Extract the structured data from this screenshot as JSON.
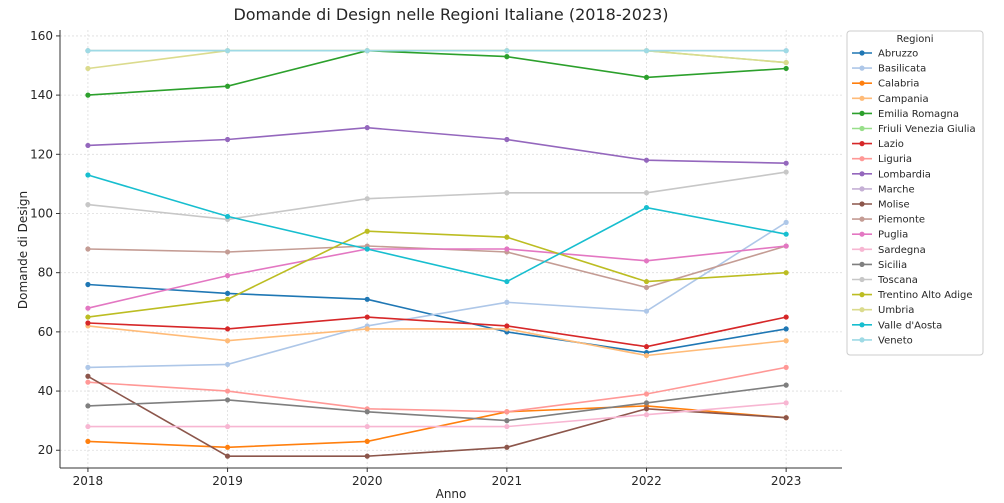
{
  "chart_data": {
    "type": "line",
    "title": "Domande di Design nelle Regioni Italiane (2018-2023)",
    "xlabel": "Anno",
    "ylabel": "Domande di Design",
    "x": [
      2018,
      2019,
      2020,
      2021,
      2022,
      2023
    ],
    "x_tick_labels": [
      "2018",
      "2019",
      "2020",
      "2021",
      "2022",
      "2023"
    ],
    "xlim": [
      2017.8,
      2023.4
    ],
    "ylim": [
      14,
      162
    ],
    "y_ticks": [
      20,
      40,
      60,
      80,
      100,
      120,
      140,
      160
    ],
    "y_tick_labels": [
      "20",
      "40",
      "60",
      "80",
      "100",
      "120",
      "140",
      "160"
    ],
    "grid": true,
    "legend": {
      "title": "Regioni",
      "position": "outside-right"
    },
    "series": [
      {
        "name": "Abruzzo",
        "color": "#1f77b4",
        "values": [
          76,
          73,
          71,
          60,
          53,
          61
        ]
      },
      {
        "name": "Basilicata",
        "color": "#aec7e8",
        "values": [
          48,
          49,
          62,
          70,
          67,
          97
        ]
      },
      {
        "name": "Calabria",
        "color": "#ff7f0e",
        "values": [
          23,
          21,
          23,
          33,
          35,
          31
        ]
      },
      {
        "name": "Campania",
        "color": "#ffbb78",
        "values": [
          62,
          57,
          61,
          61,
          52,
          57
        ]
      },
      {
        "name": "Emilia Romagna",
        "color": "#2ca02c",
        "values": [
          140,
          143,
          155,
          153,
          146,
          149
        ]
      },
      {
        "name": "Friuli Venezia Giulia",
        "color": "#98df8a",
        "values": [
          155,
          155,
          155,
          155,
          155,
          151
        ]
      },
      {
        "name": "Lazio",
        "color": "#d62728",
        "values": [
          63,
          61,
          65,
          62,
          55,
          65
        ]
      },
      {
        "name": "Liguria",
        "color": "#ff9896",
        "values": [
          43,
          40,
          34,
          33,
          39,
          48
        ]
      },
      {
        "name": "Lombardia",
        "color": "#9467bd",
        "values": [
          123,
          125,
          129,
          125,
          118,
          117
        ]
      },
      {
        "name": "Marche",
        "color": "#c5b0d5",
        "values": [
          155,
          155,
          155,
          155,
          155,
          155
        ]
      },
      {
        "name": "Molise",
        "color": "#8c564b",
        "values": [
          45,
          18,
          18,
          21,
          34,
          31
        ]
      },
      {
        "name": "Piemonte",
        "color": "#c49c94",
        "values": [
          88,
          87,
          89,
          87,
          75,
          89
        ]
      },
      {
        "name": "Puglia",
        "color": "#e377c2",
        "values": [
          68,
          79,
          88,
          88,
          84,
          89
        ]
      },
      {
        "name": "Sardegna",
        "color": "#f7b6d2",
        "values": [
          28,
          28,
          28,
          28,
          32,
          36
        ]
      },
      {
        "name": "Sicilia",
        "color": "#7f7f7f",
        "values": [
          35,
          37,
          33,
          30,
          36,
          42
        ]
      },
      {
        "name": "Toscana",
        "color": "#c7c7c7",
        "values": [
          103,
          98,
          105,
          107,
          107,
          114
        ]
      },
      {
        "name": "Trentino Alto Adige",
        "color": "#bcbd22",
        "values": [
          65,
          71,
          94,
          92,
          77,
          80
        ]
      },
      {
        "name": "Umbria",
        "color": "#dbdb8d",
        "values": [
          149,
          155,
          155,
          155,
          155,
          151
        ]
      },
      {
        "name": "Valle d'Aosta",
        "color": "#17becf",
        "values": [
          113,
          99,
          88,
          77,
          102,
          93
        ]
      },
      {
        "name": "Veneto",
        "color": "#9edae5",
        "values": [
          155,
          155,
          155,
          155,
          155,
          155
        ]
      }
    ]
  }
}
